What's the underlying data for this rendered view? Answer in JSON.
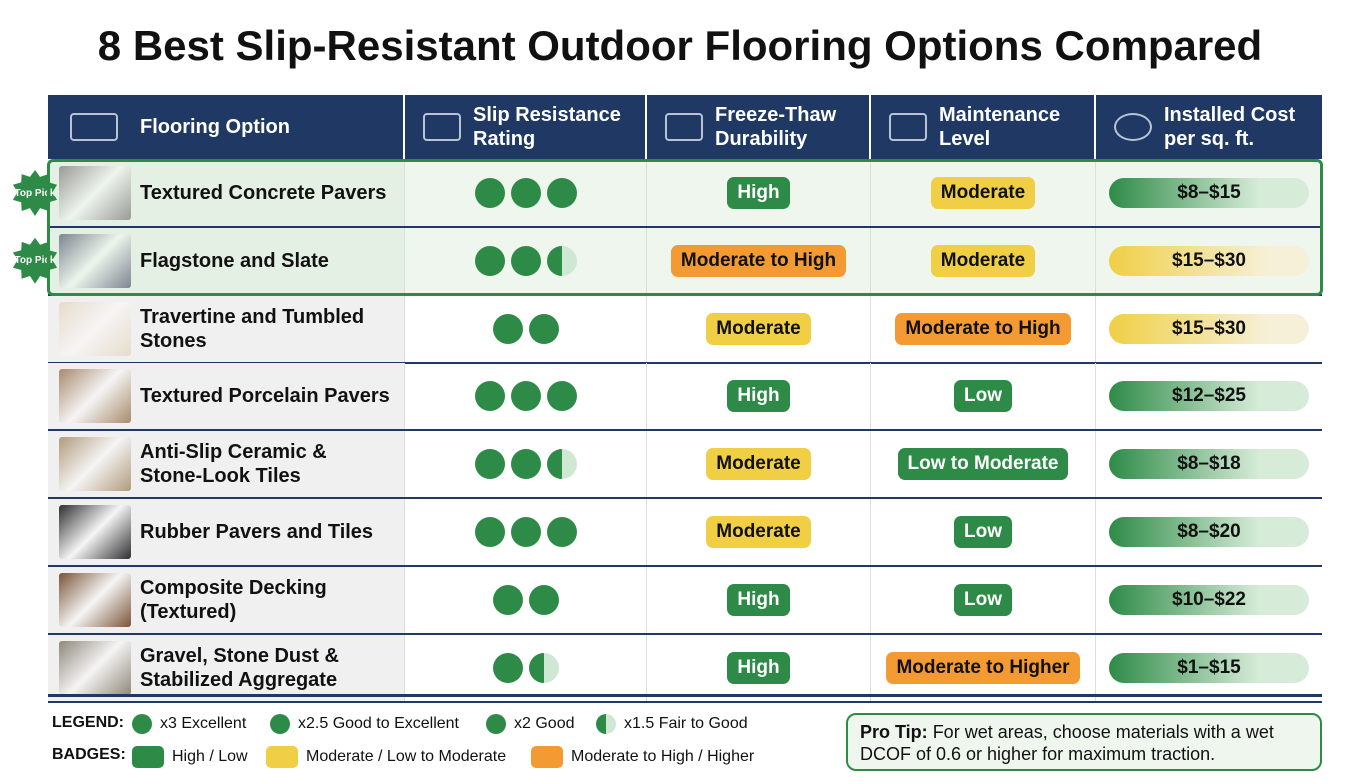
{
  "title": "8 Best Slip-Resistant Outdoor Flooring Options Compared",
  "table": {
    "headers": [
      "Flooring Option",
      "Slip Resistance Rating",
      "Freeze-Thaw Durability",
      "Maintenance Level",
      "Installed Cost per sq. ft."
    ],
    "rows": [
      {
        "name": "Textured Concrete Pavers",
        "badge": "Top Pick",
        "swatch": "#9a9a96",
        "rating": 3,
        "durability": {
          "text": "High",
          "color": "#2e8b47"
        },
        "maintenance": {
          "text": "Moderate",
          "color": "#f0cf45"
        },
        "cost": {
          "text": "$8–$15",
          "color": "#2e8b47"
        }
      },
      {
        "name": "Flagstone and Slate",
        "badge": "Top Pick",
        "swatch": "#7d8590",
        "rating": 2.5,
        "durability": {
          "text": "Moderate to High",
          "color": "#f39a33"
        },
        "maintenance": {
          "text": "Moderate",
          "color": "#f0cf45"
        },
        "cost": {
          "text": "$15–$30",
          "color": "#f0cf45"
        }
      },
      {
        "name": "Travertine and Tumbled Stones",
        "swatch": "#e6dccb",
        "rating": 2,
        "durability": {
          "text": "Moderate",
          "color": "#f0cf45"
        },
        "maintenance": {
          "text": "Moderate to High",
          "color": "#f39a33"
        },
        "cost": {
          "text": "$15–$30",
          "color": "#f0cf45"
        }
      },
      {
        "name": "Textured Porcelain Pavers",
        "swatch": "#a88a6c",
        "rating": 3,
        "durability": {
          "text": "High",
          "color": "#2e8b47"
        },
        "maintenance": {
          "text": "Low",
          "color": "#2e8b47"
        },
        "cost": {
          "text": "$12–$25",
          "color": "#2e8b47"
        }
      },
      {
        "name": "Anti-Slip Ceramic & Stone-Look Tiles",
        "swatch": "#b09a7c",
        "rating": 2.5,
        "durability": {
          "text": "Moderate",
          "color": "#f0cf45"
        },
        "maintenance": {
          "text": "Low to Moderate",
          "color": "#2e8b47"
        },
        "cost": {
          "text": "$8–$18",
          "color": "#2e8b47"
        }
      },
      {
        "name": "Rubber Pavers and Tiles",
        "swatch": "#2e2e30",
        "rating": 3,
        "durability": {
          "text": "Moderate",
          "color": "#f0cf45"
        },
        "maintenance": {
          "text": "Low",
          "color": "#2e8b47"
        },
        "cost": {
          "text": "$8–$20",
          "color": "#2e8b47"
        }
      },
      {
        "name": "Composite Decking (Textured)",
        "swatch": "#7b5438",
        "rating": 2,
        "durability": {
          "text": "High",
          "color": "#2e8b47"
        },
        "maintenance": {
          "text": "Low",
          "color": "#2e8b47"
        },
        "cost": {
          "text": "$10–$22",
          "color": "#2e8b47"
        }
      },
      {
        "name": "Gravel, Stone Dust & Stabilized Aggregate",
        "swatch": "#8f877a",
        "rating": 1.5,
        "durability": {
          "text": "High",
          "color": "#2e8b47"
        },
        "maintenance": {
          "text": "Moderate to Higher",
          "color": "#f39a33"
        },
        "cost": {
          "text": "$1–$15",
          "color": "#2e8b47"
        }
      }
    ]
  },
  "legend": {
    "label": "LEGEND:",
    "items": [
      "x3 Excellent",
      "x2.5 Good to Excellent",
      "x2 Good",
      "x1.5 Fair to Good"
    ]
  },
  "badges": {
    "label": "BADGES:",
    "items": [
      {
        "text": "High / Low",
        "color": "#2e8b47"
      },
      {
        "text": "Moderate / Low to Moderate",
        "color": "#f0cf45"
      },
      {
        "text": "Moderate to High / Higher",
        "color": "#f39a33"
      }
    ]
  },
  "pro_tip": {
    "label": "Pro Tip:",
    "text": "For wet areas, choose materials with a wet DCOF of 0.6 or higher for maximum traction."
  }
}
